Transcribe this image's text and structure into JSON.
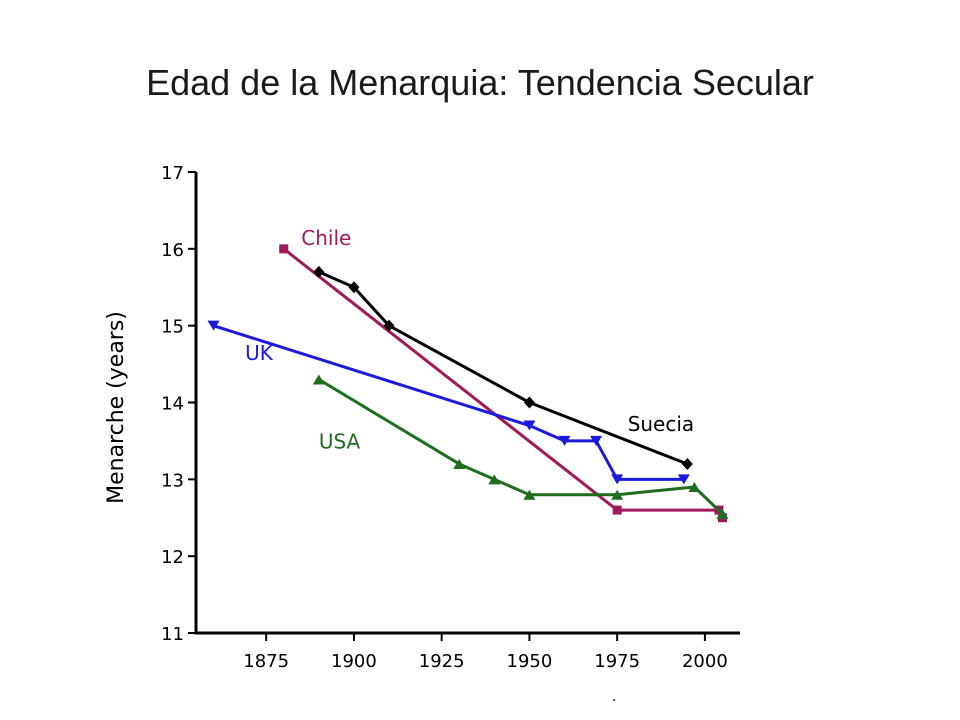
{
  "slide": {
    "title": "Edad de la Menarquia: Tendencia Secular",
    "footnote": "."
  },
  "chart_data": {
    "type": "line",
    "title": "Edad de la Menarquia: Tendencia Secular",
    "xlabel": "",
    "ylabel": "Menarche (years)",
    "xlim": [
      1855,
      2010
    ],
    "ylim": [
      11,
      17
    ],
    "xticks": [
      1875,
      1900,
      1925,
      1950,
      1975,
      2000
    ],
    "yticks": [
      11,
      12,
      13,
      14,
      15,
      16,
      17
    ],
    "grid": false,
    "series": [
      {
        "name": "Chile",
        "color": "#a0195a",
        "marker": "square",
        "x": [
          1880,
          1975,
          2004,
          2005
        ],
        "y": [
          16.0,
          12.6,
          12.6,
          12.5
        ]
      },
      {
        "name": "Suecia",
        "color": "#000000",
        "marker": "diamond",
        "x": [
          1890,
          1900,
          1910,
          1950,
          1995
        ],
        "y": [
          15.7,
          15.5,
          15.0,
          14.0,
          13.2
        ]
      },
      {
        "name": "UK",
        "color": "#1a1adf",
        "marker": "triangle-down",
        "x": [
          1860,
          1950,
          1960,
          1969,
          1975,
          1994
        ],
        "y": [
          15.0,
          13.7,
          13.5,
          13.5,
          13.0,
          13.0
        ]
      },
      {
        "name": "USA",
        "color": "#1e6e1e",
        "marker": "triangle-up",
        "x": [
          1890,
          1930,
          1940,
          1950,
          1975,
          1997,
          2005
        ],
        "y": [
          14.3,
          13.2,
          13.0,
          12.8,
          12.8,
          12.9,
          12.55
        ]
      }
    ],
    "annotations": [
      {
        "text": "Chile",
        "series": "Chile",
        "x": 1885,
        "y": 16.05
      },
      {
        "text": "Suecia",
        "series": "Suecia",
        "x": 1978,
        "y": 13.63
      },
      {
        "text": "UK",
        "series": "UK",
        "x": 1869,
        "y": 14.55
      },
      {
        "text": "USA",
        "series": "USA",
        "x": 1890,
        "y": 13.4
      }
    ]
  }
}
